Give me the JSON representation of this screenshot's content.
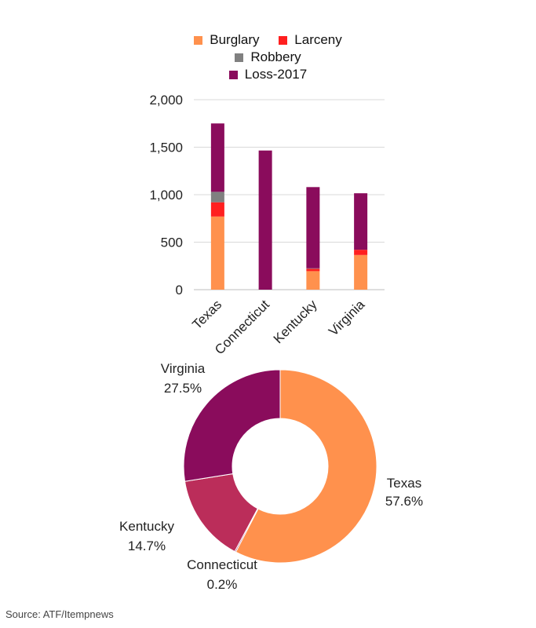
{
  "source": "Source: ATF/Itempnews",
  "colors": {
    "burglary": "#ff914d",
    "larceny": "#ff1f1f",
    "robbery": "#808080",
    "loss2017": "#8a0c5c",
    "kentucky_slice": "#bb2d5a",
    "grid": "#d9d9d9",
    "axis_text": "#222222"
  },
  "chart_data": [
    {
      "type": "bar",
      "stacked": true,
      "categories": [
        "Texas",
        "Connecticut",
        "Kentucky",
        "Virginia"
      ],
      "series": [
        {
          "name": "Burglary",
          "color": "#ff914d",
          "values": [
            770,
            0,
            195,
            365
          ]
        },
        {
          "name": "Larceny",
          "color": "#ff1f1f",
          "values": [
            150,
            0,
            25,
            55
          ]
        },
        {
          "name": "Robbery",
          "color": "#808080",
          "values": [
            110,
            0,
            5,
            0
          ]
        },
        {
          "name": "Loss-2017",
          "color": "#8a0c5c",
          "values": [
            720,
            1465,
            855,
            595
          ]
        }
      ],
      "ylim": [
        0,
        2000
      ],
      "yticks": [
        0,
        500,
        1000,
        1500,
        2000
      ],
      "ytick_labels": [
        "0",
        "500",
        "1,000",
        "1,500",
        "2,000"
      ],
      "grid": true,
      "legend_position": "top"
    },
    {
      "type": "pie",
      "donut": true,
      "labels": [
        "Texas",
        "Connecticut",
        "Kentucky",
        "Virginia"
      ],
      "values": [
        57.6,
        0.2,
        14.7,
        27.5
      ],
      "value_labels": [
        "57.6%",
        "0.2%",
        "14.7%",
        "27.5%"
      ],
      "colors": [
        "#ff914d",
        "#8a0c5c",
        "#bb2d5a",
        "#8a0c5c"
      ]
    }
  ]
}
